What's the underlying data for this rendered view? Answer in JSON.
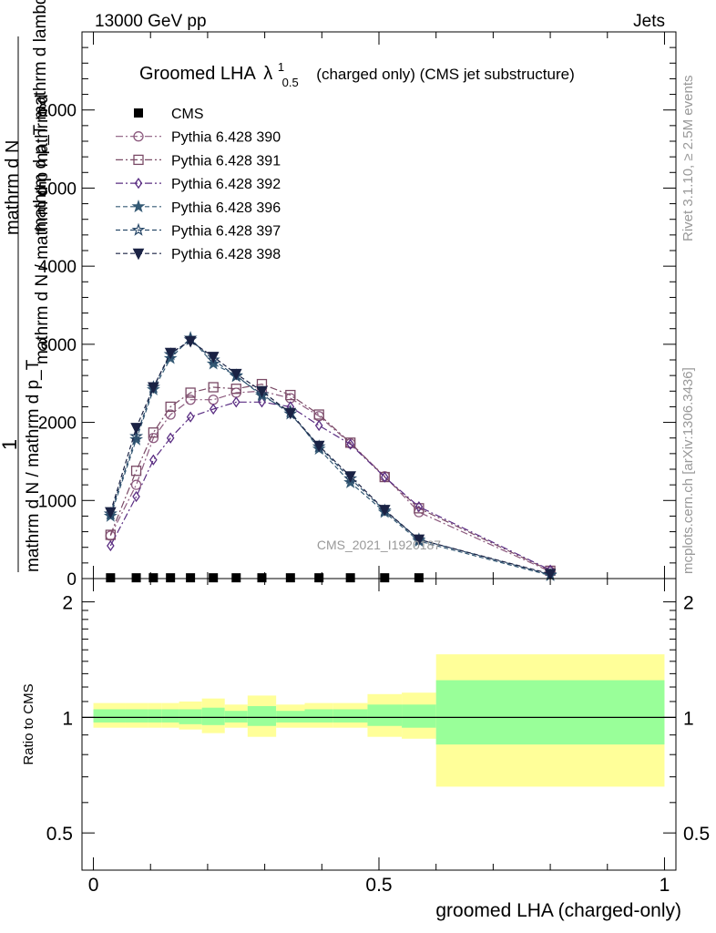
{
  "header": {
    "energy_label": "13000 GeV pp",
    "category_label": "Jets"
  },
  "side_text": {
    "rivet": "Rivet 3.1.10, ≥ 2.5M events",
    "mcplots": "mcplots.cern.ch [arXiv:1306.3436]"
  },
  "watermark": "CMS_2021_I1920187",
  "title": {
    "main": "Groomed LHA",
    "lambda": "λ",
    "sup": "1",
    "sub": "0.5",
    "rest": "(charged only) (CMS jet substructure)"
  },
  "ylabel": {
    "one": "1",
    "denominator": "mathrm d N / mathrm d p_T",
    "numerator_a": "mathrm d",
    "numerator_b": "N",
    "numerator_c": "mathrm d p_T mathrm d lambda",
    "garble_1": "mathrm d p_T mathrm d lambda",
    "garble_2": "mathrm d N / mathrm d p mathrm d",
    "garble_3": "mathrm d N"
  },
  "ratio_ylabel": "Ratio to CMS",
  "xlabel": "groomed LHA (charged-only)",
  "colors": {
    "p390": "#8c5a7e",
    "p391": "#7a4a66",
    "p392": "#5a2d82",
    "p396": "#355a75",
    "p397": "#2a4a6a",
    "p398": "#1a2244",
    "band_outer": "#ffff99",
    "band_inner": "#99ff99"
  },
  "chart_data": [
    {
      "type": "line",
      "panel": "main",
      "xlim": [
        -0.02,
        1.02
      ],
      "ylim": [
        0,
        7000
      ],
      "yticks": [
        0,
        1000,
        2000,
        3000,
        4000,
        5000,
        6000
      ],
      "ytick_labels": [
        "0",
        "1000",
        "2000",
        "3000",
        "4000",
        "5000",
        "6000"
      ],
      "x": [
        0.03,
        0.075,
        0.105,
        0.135,
        0.17,
        0.21,
        0.25,
        0.295,
        0.345,
        0.395,
        0.45,
        0.51,
        0.57,
        0.8
      ],
      "series": [
        {
          "name": "CMS",
          "values": [
            10,
            10,
            10,
            10,
            10,
            10,
            10,
            10,
            10,
            10,
            10,
            10,
            10,
            null
          ]
        },
        {
          "name": "Pythia 6.428 390",
          "values": [
            550,
            1200,
            1800,
            2100,
            2290,
            2290,
            2380,
            2400,
            2310,
            2080,
            1730,
            1310,
            850,
            90
          ]
        },
        {
          "name": "Pythia 6.428 391",
          "values": [
            560,
            1380,
            1870,
            2200,
            2380,
            2450,
            2430,
            2490,
            2350,
            2100,
            1740,
            1300,
            900,
            100
          ]
        },
        {
          "name": "Pythia 6.428 392",
          "values": [
            420,
            1050,
            1520,
            1800,
            2070,
            2170,
            2260,
            2260,
            2200,
            1960,
            1720,
            1300,
            920,
            110
          ]
        },
        {
          "name": "Pythia 6.428 396",
          "values": [
            800,
            1780,
            2420,
            2820,
            3080,
            2750,
            2600,
            2340,
            2140,
            1660,
            1230,
            850,
            480,
            40
          ]
        },
        {
          "name": "Pythia 6.428 397",
          "values": [
            830,
            1820,
            2450,
            2870,
            3060,
            2800,
            2590,
            2360,
            2110,
            1690,
            1280,
            870,
            500,
            50
          ]
        },
        {
          "name": "Pythia 6.428 398",
          "values": [
            850,
            1930,
            2450,
            2890,
            3040,
            2840,
            2620,
            2400,
            2120,
            1700,
            1310,
            880,
            500,
            60
          ]
        }
      ]
    },
    {
      "type": "area",
      "panel": "ratio",
      "ylabel": "Ratio to CMS",
      "xlabel": "groomed LHA (charged-only)",
      "xlim": [
        -0.02,
        1.02
      ],
      "ylim": [
        0.4,
        2.3
      ],
      "log_y": true,
      "yticks": [
        0.5,
        1,
        2
      ],
      "ytick_labels": [
        "0.5",
        "1",
        "2"
      ],
      "xticks": [
        0,
        0.5,
        1
      ],
      "xtick_labels": [
        "0",
        "0.5",
        "1"
      ],
      "reference_line": 1,
      "bins": [
        {
          "lo": 0.0,
          "hi": 0.055,
          "outer": [
            0.94,
            1.09
          ],
          "inner": [
            0.97,
            1.05
          ]
        },
        {
          "lo": 0.055,
          "hi": 0.095,
          "outer": [
            0.94,
            1.09
          ],
          "inner": [
            0.97,
            1.05
          ]
        },
        {
          "lo": 0.095,
          "hi": 0.12,
          "outer": [
            0.94,
            1.09
          ],
          "inner": [
            0.97,
            1.05
          ]
        },
        {
          "lo": 0.12,
          "hi": 0.15,
          "outer": [
            0.94,
            1.09
          ],
          "inner": [
            0.97,
            1.05
          ]
        },
        {
          "lo": 0.15,
          "hi": 0.19,
          "outer": [
            0.93,
            1.1
          ],
          "inner": [
            0.96,
            1.05
          ]
        },
        {
          "lo": 0.19,
          "hi": 0.23,
          "outer": [
            0.91,
            1.12
          ],
          "inner": [
            0.955,
            1.06
          ]
        },
        {
          "lo": 0.23,
          "hi": 0.27,
          "outer": [
            0.94,
            1.08
          ],
          "inner": [
            0.97,
            1.04
          ]
        },
        {
          "lo": 0.27,
          "hi": 0.32,
          "outer": [
            0.89,
            1.14
          ],
          "inner": [
            0.95,
            1.07
          ]
        },
        {
          "lo": 0.32,
          "hi": 0.37,
          "outer": [
            0.94,
            1.08
          ],
          "inner": [
            0.97,
            1.04
          ]
        },
        {
          "lo": 0.37,
          "hi": 0.42,
          "outer": [
            0.94,
            1.09
          ],
          "inner": [
            0.97,
            1.05
          ]
        },
        {
          "lo": 0.42,
          "hi": 0.48,
          "outer": [
            0.94,
            1.09
          ],
          "inner": [
            0.97,
            1.05
          ]
        },
        {
          "lo": 0.48,
          "hi": 0.54,
          "outer": [
            0.89,
            1.15
          ],
          "inner": [
            0.95,
            1.08
          ]
        },
        {
          "lo": 0.54,
          "hi": 0.6,
          "outer": [
            0.88,
            1.16
          ],
          "inner": [
            0.94,
            1.08
          ]
        },
        {
          "lo": 0.6,
          "hi": 1.0,
          "outer": [
            0.66,
            1.46
          ],
          "inner": [
            0.85,
            1.25
          ]
        }
      ]
    }
  ]
}
